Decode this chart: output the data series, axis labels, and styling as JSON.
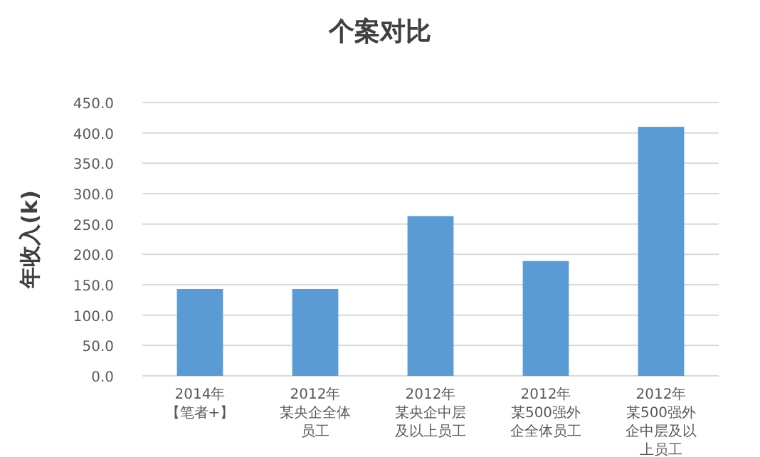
{
  "chart_data": {
    "type": "bar",
    "title": "个案对比",
    "ylabel": "年收入(k)",
    "categories": [
      "2014年【笔者+】",
      "2012年某央企全体员工",
      "2012年某央企中层及以上员工",
      "2012年某500强外企全体员工",
      "2012年某500强外企中层及以上员工"
    ],
    "values": [
      143,
      143,
      263,
      189,
      410
    ],
    "color": "#5b9bd5",
    "ylim": [
      0,
      450
    ],
    "yticks": [
      {
        "value": 0,
        "label": "0.0"
      },
      {
        "value": 50,
        "label": "50.0"
      },
      {
        "value": 100,
        "label": "100.0"
      },
      {
        "value": 150,
        "label": "150.0"
      },
      {
        "value": 200,
        "label": "200.0"
      },
      {
        "value": 250,
        "label": "250.0"
      },
      {
        "value": 300,
        "label": "300.0"
      },
      {
        "value": 350,
        "label": "350.0"
      },
      {
        "value": 400,
        "label": "400.0"
      },
      {
        "value": 450,
        "label": "450.0"
      }
    ],
    "grid": "y"
  }
}
